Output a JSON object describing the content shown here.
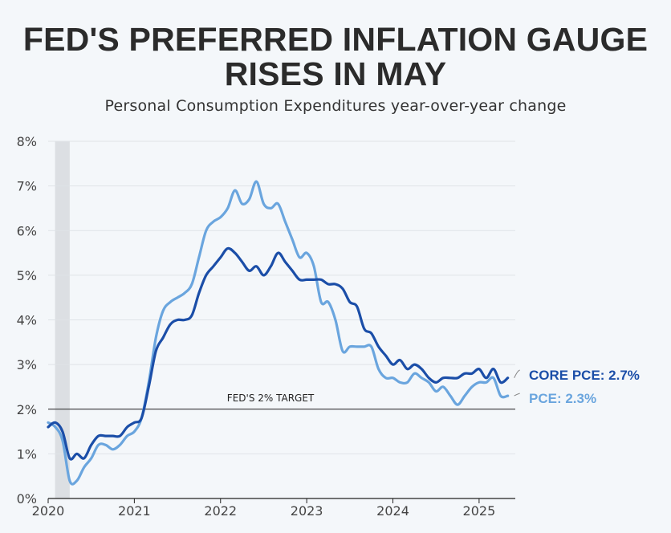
{
  "header": {
    "title_line1": "FED'S PREFERRED INFLATION GAUGE",
    "title_line2": "RISES IN MAY",
    "subtitle": "Personal Consumption Expenditures year-over-year change"
  },
  "chart_data": {
    "type": "line",
    "title": "FED'S PREFERRED INFLATION GAUGE RISES IN MAY",
    "subtitle": "Personal Consumption Expenditures year-over-year change",
    "xlabel": "",
    "ylabel": "",
    "xlim": [
      2020.0,
      2025.42
    ],
    "ylim": [
      0,
      8
    ],
    "y_ticks": [
      0,
      1,
      2,
      3,
      4,
      5,
      6,
      7,
      8
    ],
    "y_tick_labels": [
      "0%",
      "1%",
      "2%",
      "3%",
      "4%",
      "5%",
      "6%",
      "7%",
      "8%"
    ],
    "x_ticks": [
      2020,
      2021,
      2022,
      2023,
      2024,
      2025
    ],
    "x_tick_labels": [
      "2020",
      "2021",
      "2022",
      "2023",
      "2024",
      "2025"
    ],
    "grid": true,
    "recession_shading": [
      2020.08,
      2020.25
    ],
    "reference_line": {
      "value": 2,
      "label": "FED'S 2% TARGET"
    },
    "series": [
      {
        "name": "CORE PCE",
        "end_label": "CORE PCE: 2.7%",
        "color": "#1b4ea8",
        "x": [
          2020.0,
          2020.083,
          2020.167,
          2020.25,
          2020.333,
          2020.417,
          2020.5,
          2020.583,
          2020.667,
          2020.75,
          2020.833,
          2020.917,
          2021.0,
          2021.083,
          2021.167,
          2021.25,
          2021.333,
          2021.417,
          2021.5,
          2021.583,
          2021.667,
          2021.75,
          2021.833,
          2021.917,
          2022.0,
          2022.083,
          2022.167,
          2022.25,
          2022.333,
          2022.417,
          2022.5,
          2022.583,
          2022.667,
          2022.75,
          2022.833,
          2022.917,
          2023.0,
          2023.083,
          2023.167,
          2023.25,
          2023.333,
          2023.417,
          2023.5,
          2023.583,
          2023.667,
          2023.75,
          2023.833,
          2023.917,
          2024.0,
          2024.083,
          2024.167,
          2024.25,
          2024.333,
          2024.417,
          2024.5,
          2024.583,
          2024.667,
          2024.75,
          2024.833,
          2024.917,
          2025.0,
          2025.083,
          2025.167,
          2025.25,
          2025.333
        ],
        "values": [
          1.6,
          1.7,
          1.5,
          0.9,
          1.0,
          0.9,
          1.2,
          1.4,
          1.4,
          1.4,
          1.4,
          1.6,
          1.7,
          1.8,
          2.5,
          3.3,
          3.6,
          3.9,
          4.0,
          4.0,
          4.1,
          4.6,
          5.0,
          5.2,
          5.4,
          5.6,
          5.5,
          5.3,
          5.1,
          5.2,
          5.0,
          5.2,
          5.5,
          5.3,
          5.1,
          4.9,
          4.9,
          4.9,
          4.9,
          4.8,
          4.8,
          4.7,
          4.4,
          4.3,
          3.8,
          3.7,
          3.4,
          3.2,
          3.0,
          3.1,
          2.9,
          3.0,
          2.9,
          2.7,
          2.6,
          2.7,
          2.7,
          2.7,
          2.8,
          2.8,
          2.9,
          2.7,
          2.9,
          2.6,
          2.7
        ]
      },
      {
        "name": "PCE",
        "end_label": "PCE: 2.3%",
        "color": "#6aa5de",
        "x": [
          2020.0,
          2020.083,
          2020.167,
          2020.25,
          2020.333,
          2020.417,
          2020.5,
          2020.583,
          2020.667,
          2020.75,
          2020.833,
          2020.917,
          2021.0,
          2021.083,
          2021.167,
          2021.25,
          2021.333,
          2021.417,
          2021.5,
          2021.583,
          2021.667,
          2021.75,
          2021.833,
          2021.917,
          2022.0,
          2022.083,
          2022.167,
          2022.25,
          2022.333,
          2022.417,
          2022.5,
          2022.583,
          2022.667,
          2022.75,
          2022.833,
          2022.917,
          2023.0,
          2023.083,
          2023.167,
          2023.25,
          2023.333,
          2023.417,
          2023.5,
          2023.583,
          2023.667,
          2023.75,
          2023.833,
          2023.917,
          2024.0,
          2024.083,
          2024.167,
          2024.25,
          2024.333,
          2024.417,
          2024.5,
          2024.583,
          2024.667,
          2024.75,
          2024.833,
          2024.917,
          2025.0,
          2025.083,
          2025.167,
          2025.25,
          2025.333
        ],
        "values": [
          1.7,
          1.6,
          1.3,
          0.4,
          0.4,
          0.7,
          0.9,
          1.2,
          1.2,
          1.1,
          1.2,
          1.4,
          1.5,
          1.8,
          2.6,
          3.6,
          4.2,
          4.4,
          4.5,
          4.6,
          4.8,
          5.4,
          6.0,
          6.2,
          6.3,
          6.5,
          6.9,
          6.6,
          6.7,
          7.1,
          6.6,
          6.5,
          6.6,
          6.2,
          5.8,
          5.4,
          5.5,
          5.2,
          4.4,
          4.4,
          4.0,
          3.3,
          3.4,
          3.4,
          3.4,
          3.4,
          2.9,
          2.7,
          2.7,
          2.6,
          2.6,
          2.8,
          2.7,
          2.6,
          2.4,
          2.5,
          2.3,
          2.1,
          2.3,
          2.5,
          2.6,
          2.6,
          2.7,
          2.3,
          2.3
        ]
      }
    ]
  }
}
